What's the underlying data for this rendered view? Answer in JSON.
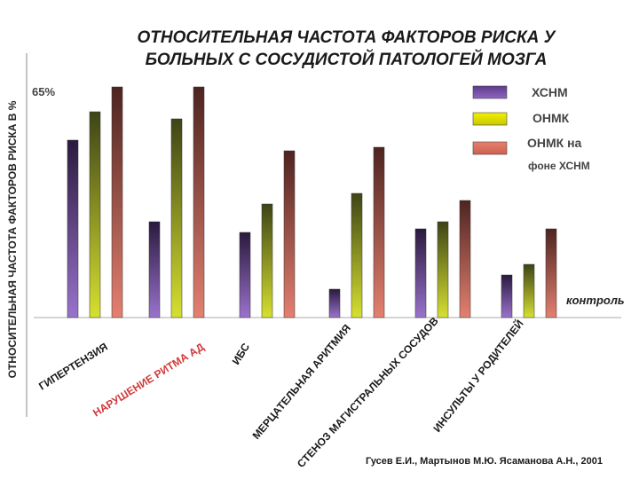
{
  "chart_data": {
    "type": "bar",
    "title_line1": "ОТНОСИТЕЛЬНАЯ ЧАСТОТА ФАКТОРОВ РИСКА У",
    "title_line2": "БОЛЬНЫХ С СОСУДИСТОЙ ПАТОЛОГЕЙ МОЗГА",
    "ylabel": "ОТНОСИТЕЛЬНАЯ ЧАСТОТА ФАКТОРОВ РИСКА В %",
    "ymax_label": "65%",
    "ylim": [
      0,
      65
    ],
    "categories": [
      "ГИПЕРТЕНЗИЯ",
      "НАРУШЕНИЕ РИТМА АД",
      "ИБС",
      "МЕРЦАТЕЛЬНАЯ АРИТМИЯ",
      "СТЕНОЗ МАГИСТРАЛЬНЫХ СОСУДОВ",
      "ИНСУЛЬТЫ У РОДИТЕЛЕЙ"
    ],
    "series": [
      {
        "name": "ХСНМ",
        "color": "#6f4a9c",
        "values": [
          50,
          27,
          24,
          8,
          25,
          12
        ]
      },
      {
        "name": "ОНМК",
        "color": "#98a818",
        "values": [
          58,
          56,
          32,
          35,
          27,
          15
        ]
      },
      {
        "name": "ОНМК на фоне ХСНМ",
        "color": "#b85a4e",
        "values": [
          65,
          65,
          47,
          48,
          33,
          25
        ]
      }
    ],
    "legend": {
      "position": "top-right",
      "entries": [
        "ХСНМ",
        "ОНМК",
        "ОНМК на",
        "фоне ХСНМ"
      ]
    },
    "annotation": "контроль",
    "source": "Гусев Е.И., Мартынов М.Ю. Ясаманова А.Н., 2001"
  }
}
